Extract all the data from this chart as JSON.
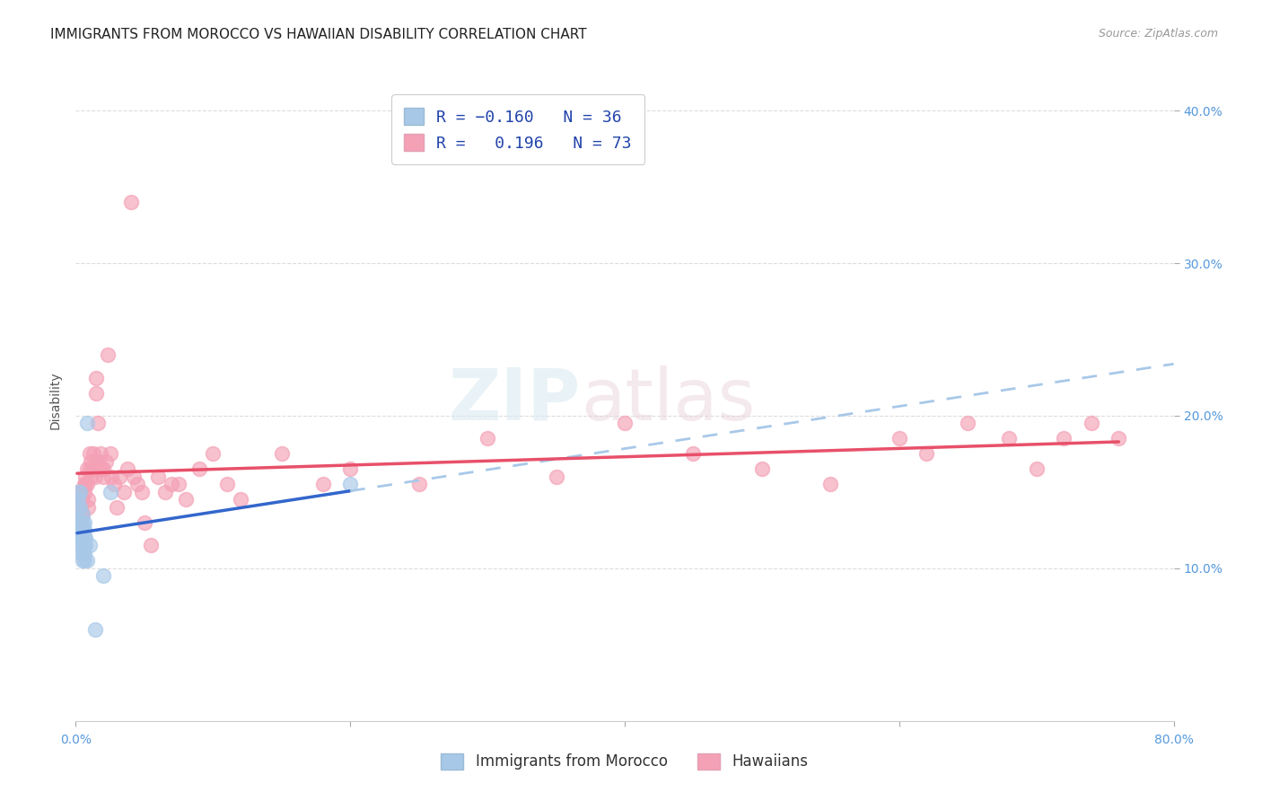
{
  "title": "IMMIGRANTS FROM MOROCCO VS HAWAIIAN DISABILITY CORRELATION CHART",
  "source": "Source: ZipAtlas.com",
  "ylabel": "Disability",
  "xlim": [
    0.0,
    0.8
  ],
  "ylim": [
    0.0,
    0.42
  ],
  "yticks": [
    0.1,
    0.2,
    0.3,
    0.4
  ],
  "ytick_labels": [
    "10.0%",
    "20.0%",
    "30.0%",
    "40.0%"
  ],
  "xticks": [
    0.0,
    0.2,
    0.4,
    0.6,
    0.8
  ],
  "xtick_labels": [
    "0.0%",
    "",
    "",
    "",
    "80.0%"
  ],
  "blue_R": -0.16,
  "blue_N": 36,
  "pink_R": 0.196,
  "pink_N": 73,
  "blue_color": "#a8c8e8",
  "pink_color": "#f4a0b5",
  "blue_line_color": "#3366cc",
  "pink_line_color": "#e8506a",
  "watermark_zip": "ZIP",
  "watermark_atlas": "atlas",
  "legend_label_blue": "Immigrants from Morocco",
  "legend_label_pink": "Hawaiians",
  "blue_x": [
    0.001,
    0.002,
    0.002,
    0.002,
    0.003,
    0.003,
    0.003,
    0.003,
    0.003,
    0.004,
    0.004,
    0.004,
    0.004,
    0.004,
    0.005,
    0.005,
    0.005,
    0.005,
    0.005,
    0.005,
    0.005,
    0.006,
    0.006,
    0.006,
    0.006,
    0.006,
    0.006,
    0.007,
    0.007,
    0.008,
    0.008,
    0.01,
    0.014,
    0.02,
    0.025,
    0.2
  ],
  "blue_y": [
    0.13,
    0.14,
    0.145,
    0.15,
    0.12,
    0.125,
    0.13,
    0.14,
    0.15,
    0.11,
    0.115,
    0.12,
    0.125,
    0.13,
    0.105,
    0.11,
    0.115,
    0.12,
    0.125,
    0.13,
    0.135,
    0.105,
    0.11,
    0.115,
    0.12,
    0.125,
    0.13,
    0.115,
    0.12,
    0.105,
    0.195,
    0.115,
    0.06,
    0.095,
    0.15,
    0.155
  ],
  "pink_x": [
    0.001,
    0.002,
    0.003,
    0.003,
    0.004,
    0.004,
    0.005,
    0.005,
    0.006,
    0.006,
    0.007,
    0.007,
    0.008,
    0.008,
    0.009,
    0.009,
    0.01,
    0.01,
    0.011,
    0.011,
    0.012,
    0.013,
    0.014,
    0.015,
    0.015,
    0.016,
    0.017,
    0.018,
    0.019,
    0.02,
    0.02,
    0.022,
    0.023,
    0.025,
    0.026,
    0.028,
    0.03,
    0.032,
    0.035,
    0.038,
    0.04,
    0.042,
    0.045,
    0.048,
    0.05,
    0.055,
    0.06,
    0.065,
    0.07,
    0.075,
    0.08,
    0.09,
    0.1,
    0.11,
    0.12,
    0.15,
    0.18,
    0.2,
    0.25,
    0.3,
    0.35,
    0.4,
    0.45,
    0.5,
    0.55,
    0.6,
    0.62,
    0.65,
    0.68,
    0.7,
    0.72,
    0.74,
    0.76
  ],
  "pink_y": [
    0.15,
    0.14,
    0.145,
    0.15,
    0.13,
    0.14,
    0.135,
    0.145,
    0.155,
    0.15,
    0.155,
    0.16,
    0.155,
    0.165,
    0.14,
    0.145,
    0.165,
    0.175,
    0.16,
    0.17,
    0.165,
    0.175,
    0.16,
    0.215,
    0.225,
    0.195,
    0.17,
    0.175,
    0.165,
    0.16,
    0.165,
    0.17,
    0.24,
    0.175,
    0.16,
    0.155,
    0.14,
    0.16,
    0.15,
    0.165,
    0.34,
    0.16,
    0.155,
    0.15,
    0.13,
    0.115,
    0.16,
    0.15,
    0.155,
    0.155,
    0.145,
    0.165,
    0.175,
    0.155,
    0.145,
    0.175,
    0.155,
    0.165,
    0.155,
    0.185,
    0.16,
    0.195,
    0.175,
    0.165,
    0.155,
    0.185,
    0.175,
    0.195,
    0.185,
    0.165,
    0.185,
    0.195,
    0.185
  ],
  "title_fontsize": 11,
  "source_fontsize": 9,
  "axis_label_fontsize": 10,
  "tick_fontsize": 10,
  "legend_fontsize": 13,
  "background_color": "#ffffff",
  "grid_color": "#dddddd"
}
